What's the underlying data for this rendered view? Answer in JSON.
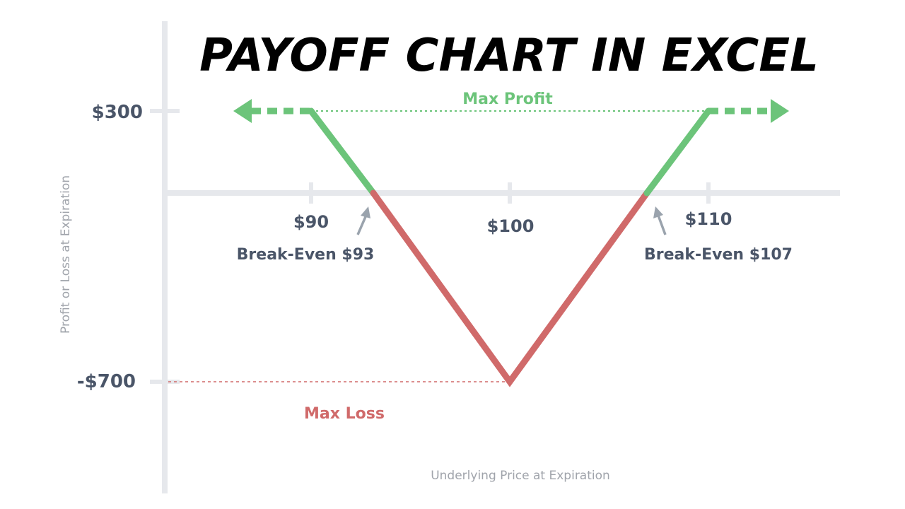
{
  "chart_data": {
    "type": "line",
    "title": "PAYOFF CHART IN EXCEL",
    "xlabel": "Underlying Price at Expiration",
    "ylabel": "Profit or Loss at Expiration",
    "x_ticks": [
      "$90",
      "$100",
      "$110"
    ],
    "y_ticks": [
      "$300",
      "-$700"
    ],
    "payoff_points": [
      {
        "x": 86.4,
        "y": 300
      },
      {
        "x": 90,
        "y": 300
      },
      {
        "x": 93,
        "y": 0
      },
      {
        "x": 100,
        "y": -700
      },
      {
        "x": 107,
        "y": 0
      },
      {
        "x": 110,
        "y": 300
      },
      {
        "x": 113.6,
        "y": 300
      }
    ],
    "annotations": {
      "max_profit": "Max Profit",
      "max_loss": "Max Loss",
      "break_even_low": "Break-Even $93",
      "break_even_high": "Break-Even $107"
    },
    "colors": {
      "profit": "#6cc47a",
      "loss": "#d06a6a",
      "axis": "#e6e8ec",
      "text": "#4a5568",
      "label": "#a0a4ab",
      "arrow": "#9aa3ad"
    },
    "grid": false
  }
}
